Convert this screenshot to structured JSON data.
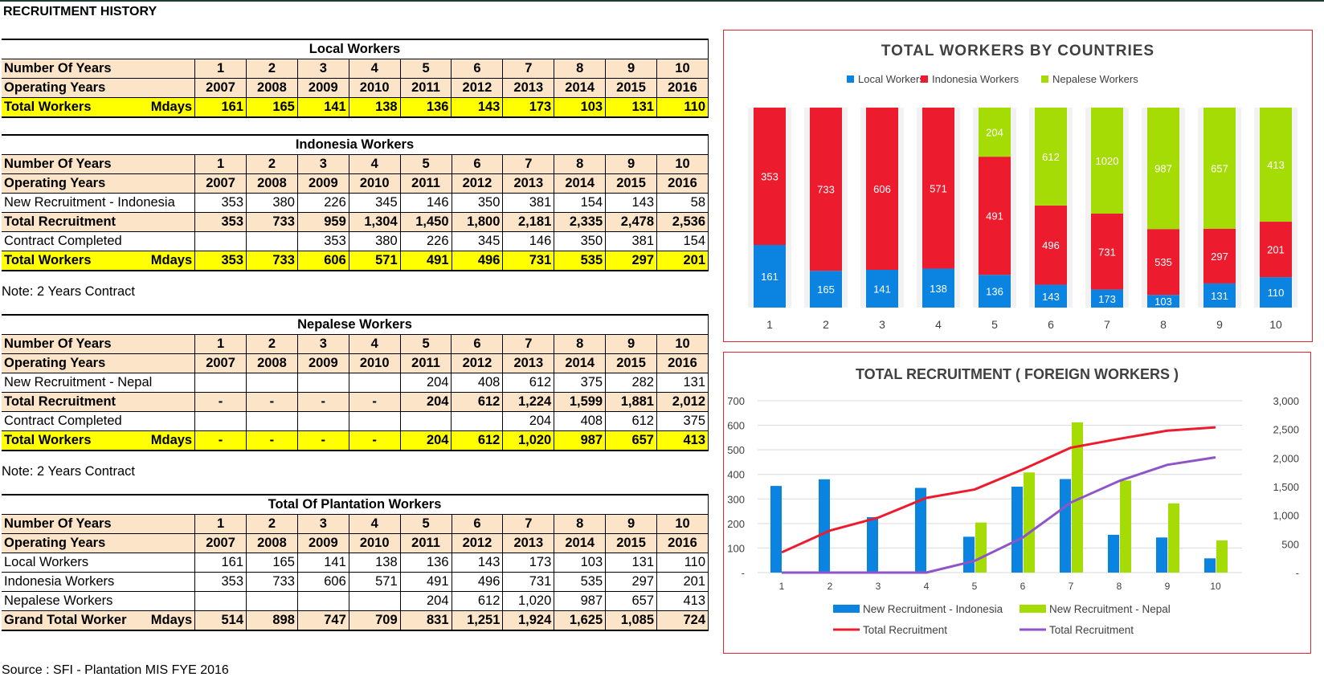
{
  "page": {
    "title": "RECRUITMENT HISTORY",
    "source": "Source : SFI - Plantation MIS FYE 2016"
  },
  "labels": {
    "number_of_years": "Number Of Years",
    "operating_years": "Operating Years",
    "total_workers": "Total Workers",
    "mdays": "Mdays",
    "grand_total": "Grand Total Worker",
    "note": "Note: 2 Years Contract"
  },
  "years": [
    "1",
    "2",
    "3",
    "4",
    "5",
    "6",
    "7",
    "8",
    "9",
    "10"
  ],
  "operating_years": [
    "2007",
    "2008",
    "2009",
    "2010",
    "2011",
    "2012",
    "2013",
    "2014",
    "2015",
    "2016"
  ],
  "tables": {
    "local": {
      "title": "Local Workers",
      "total_workers": [
        "161",
        "165",
        "141",
        "138",
        "136",
        "143",
        "173",
        "103",
        "131",
        "110"
      ]
    },
    "indonesia": {
      "title": "Indonesia Workers",
      "new_label": "New Recruitment - Indonesia",
      "new_recruitment": [
        "353",
        "380",
        "226",
        "345",
        "146",
        "350",
        "381",
        "154",
        "143",
        "58"
      ],
      "total_label": "Total Recruitment",
      "total_recruitment": [
        "353",
        "733",
        "959",
        "1,304",
        "1,450",
        "1,800",
        "2,181",
        "2,335",
        "2,478",
        "2,536"
      ],
      "completed_label": "Contract Completed",
      "contract_completed": [
        "",
        "",
        "353",
        "380",
        "226",
        "345",
        "146",
        "350",
        "381",
        "154"
      ],
      "total_workers": [
        "353",
        "733",
        "606",
        "571",
        "491",
        "496",
        "731",
        "535",
        "297",
        "201"
      ]
    },
    "nepal": {
      "title": "Nepalese Workers",
      "new_label": "New Recruitment - Nepal",
      "new_recruitment": [
        "",
        "",
        "",
        "",
        "204",
        "408",
        "612",
        "375",
        "282",
        "131"
      ],
      "total_label": "Total Recruitment",
      "total_recruitment": [
        "-",
        "-",
        "-",
        "-",
        "204",
        "612",
        "1,224",
        "1,599",
        "1,881",
        "2,012"
      ],
      "completed_label": "Contract Completed",
      "contract_completed": [
        "",
        "",
        "",
        "",
        "",
        "",
        "204",
        "408",
        "612",
        "375"
      ],
      "total_workers": [
        "-",
        "-",
        "-",
        "-",
        "204",
        "612",
        "1,020",
        "987",
        "657",
        "413"
      ]
    },
    "plantation": {
      "title": "Total Of Plantation Workers",
      "local_label": "Local Workers",
      "local": [
        "161",
        "165",
        "141",
        "138",
        "136",
        "143",
        "173",
        "103",
        "131",
        "110"
      ],
      "indonesia_label": "Indonesia Workers",
      "indonesia": [
        "353",
        "733",
        "606",
        "571",
        "491",
        "496",
        "731",
        "535",
        "297",
        "201"
      ],
      "nepal_label": "Nepalese Workers",
      "nepal": [
        "",
        "",
        "",
        "",
        "204",
        "612",
        "1,020",
        "987",
        "657",
        "413"
      ],
      "grand_total": [
        "514",
        "898",
        "747",
        "709",
        "831",
        "1,251",
        "1,924",
        "1,625",
        "1,085",
        "724"
      ]
    }
  },
  "colors": {
    "blue": "#0a84e0",
    "red": "#ec1c2e",
    "green": "#a6dc05",
    "purple": "#8e55c8",
    "peach": "#fce4c8",
    "yellow": "#ffff00",
    "chart_border": "#e5242b"
  },
  "chart_data": [
    {
      "type": "bar",
      "stacked": true,
      "title": "TOTAL WORKERS BY COUNTRIES",
      "categories": [
        "1",
        "2",
        "3",
        "4",
        "5",
        "6",
        "7",
        "8",
        "9",
        "10"
      ],
      "series": [
        {
          "name": "Local Workers",
          "values": [
            161,
            165,
            141,
            138,
            136,
            143,
            173,
            103,
            131,
            110
          ]
        },
        {
          "name": "Indonesia Workers",
          "values": [
            353,
            733,
            606,
            571,
            491,
            496,
            731,
            535,
            297,
            201
          ]
        },
        {
          "name": "Nepalese Workers",
          "values": [
            0,
            0,
            0,
            0,
            204,
            612,
            1020,
            987,
            657,
            413
          ]
        }
      ],
      "stack_mode": "percent",
      "legend": "top",
      "grid": false
    },
    {
      "type": "bar",
      "title": "TOTAL RECRUITMENT ( FOREIGN WORKERS )",
      "categories": [
        "1",
        "2",
        "3",
        "4",
        "5",
        "6",
        "7",
        "8",
        "9",
        "10"
      ],
      "series": [
        {
          "name": "New Recruitment - Indonesia",
          "type": "bar",
          "axis": "left",
          "values": [
            353,
            380,
            226,
            345,
            146,
            350,
            381,
            154,
            143,
            58
          ]
        },
        {
          "name": "New Recruitment - Nepal",
          "type": "bar",
          "axis": "left",
          "values": [
            0,
            0,
            0,
            0,
            204,
            408,
            612,
            375,
            282,
            131
          ]
        },
        {
          "name": "Total Recruitment",
          "type": "line",
          "axis": "right",
          "values": [
            353,
            733,
            959,
            1304,
            1450,
            1800,
            2181,
            2335,
            2478,
            2536
          ]
        },
        {
          "name": "Total Recruitment",
          "type": "line",
          "axis": "right",
          "values": [
            0,
            0,
            0,
            0,
            204,
            612,
            1224,
            1599,
            1881,
            2012
          ]
        }
      ],
      "left_axis": {
        "ylim": [
          0,
          700
        ],
        "ticks": [
          "-",
          "100",
          "200",
          "300",
          "400",
          "500",
          "600",
          "700"
        ]
      },
      "right_axis": {
        "ylim": [
          0,
          3000
        ],
        "ticks": [
          "-",
          "500",
          "1,000",
          "1,500",
          "2,000",
          "2,500",
          "3,000"
        ]
      },
      "legend": "bottom",
      "grid": true
    }
  ]
}
